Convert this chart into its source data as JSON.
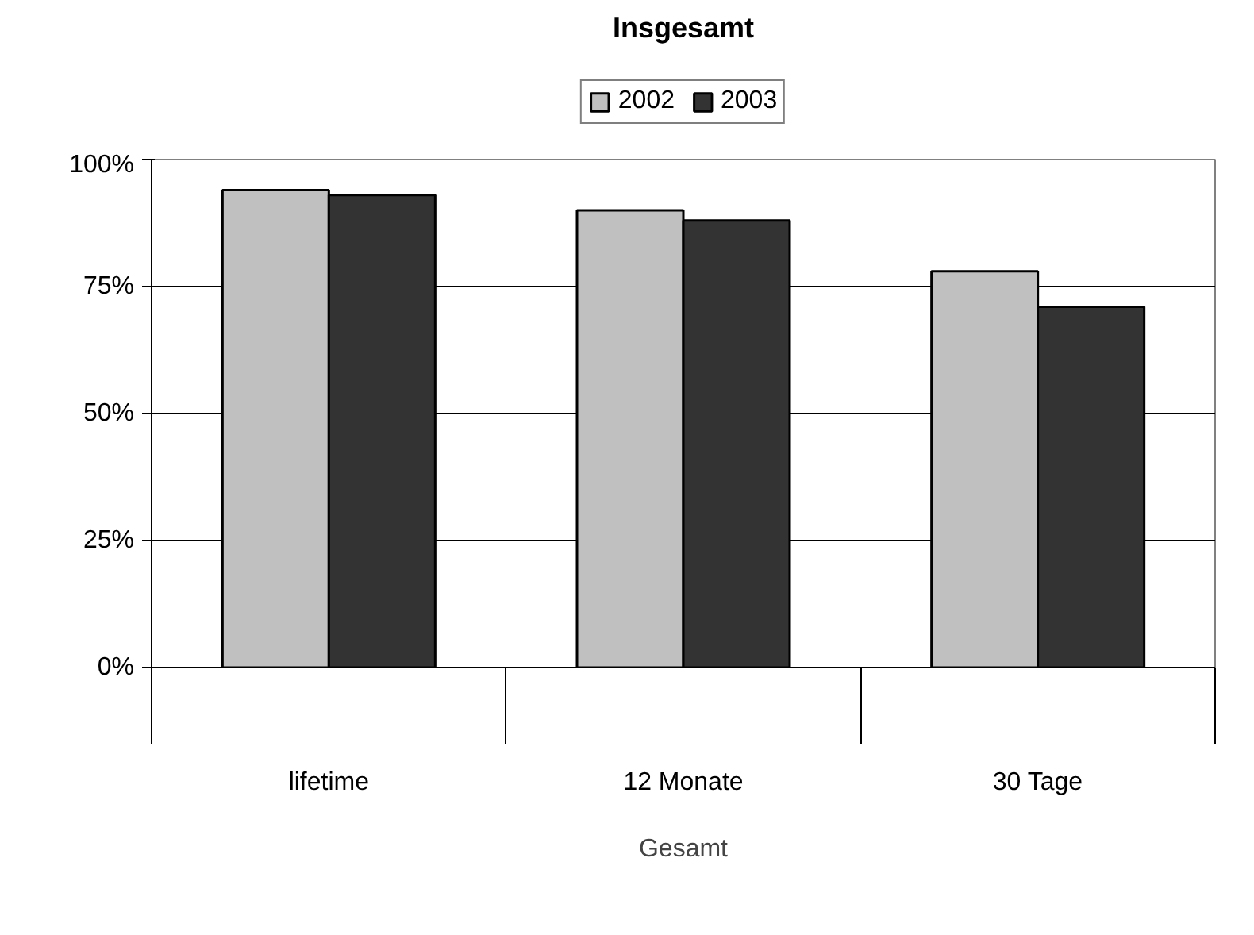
{
  "chart_data": {
    "type": "bar",
    "title": "Insgesamt",
    "xlabel": "Gesamt",
    "categories": [
      "lifetime",
      "12 Monate",
      "30 Tage"
    ],
    "series": [
      {
        "name": "2002",
        "color": "#c0c0c0",
        "values": [
          94,
          90,
          78
        ]
      },
      {
        "name": "2003",
        "color": "#333333",
        "values": [
          93,
          88,
          71
        ]
      }
    ],
    "ylim": [
      0,
      100
    ],
    "yticks": [
      {
        "value": 0,
        "label": "0%"
      },
      {
        "value": 25,
        "label": "25%"
      },
      {
        "value": 50,
        "label": "50%"
      },
      {
        "value": 75,
        "label": "75%"
      },
      {
        "value": 100,
        "label": "100%"
      }
    ],
    "grid": "y",
    "legend": "top"
  }
}
